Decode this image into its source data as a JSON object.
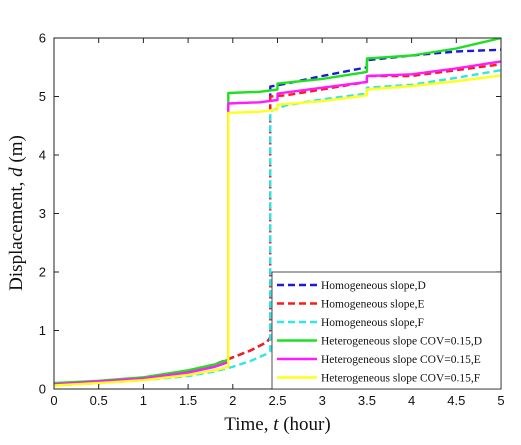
{
  "chart_data": {
    "type": "line",
    "xlabel": {
      "prefix": "Time, ",
      "var": "t",
      "suffix": " (hour)"
    },
    "ylabel": {
      "prefix": "Displacement, ",
      "var": "d",
      "suffix": " (m)"
    },
    "xlim": [
      0,
      5
    ],
    "ylim": [
      0,
      6
    ],
    "xticks": [
      0,
      0.5,
      1,
      1.5,
      2,
      2.5,
      3,
      3.5,
      4,
      4.5,
      5
    ],
    "xtick_labels": [
      "0",
      "0.5",
      "1",
      "1.5",
      "2",
      "2.5",
      "3",
      "3.5",
      "4",
      "4.5",
      "5"
    ],
    "yticks": [
      0,
      1,
      2,
      3,
      4,
      5,
      6
    ],
    "ytick_labels": [
      "0",
      "1",
      "2",
      "3",
      "4",
      "5",
      "6"
    ],
    "grid": false,
    "legend_position": "bottom-right",
    "series": [
      {
        "name": "Homogeneous slope,D",
        "color": "#1a1adc",
        "dash": "dashed",
        "x": [
          0,
          0.5,
          1,
          1.5,
          1.8,
          2.0,
          2.2,
          2.38,
          2.42,
          2.42,
          2.6,
          3.0,
          3.5,
          3.5,
          4.0,
          4.5,
          5.0
        ],
        "y": [
          0.08,
          0.13,
          0.19,
          0.3,
          0.42,
          0.54,
          0.66,
          0.8,
          0.88,
          5.17,
          5.22,
          5.35,
          5.5,
          5.62,
          5.7,
          5.77,
          5.8
        ]
      },
      {
        "name": "Homogeneous slope,E",
        "color": "#ff1a1a",
        "dash": "dashed",
        "x": [
          0,
          0.5,
          1,
          1.5,
          1.8,
          2.0,
          2.2,
          2.38,
          2.42,
          2.42,
          2.6,
          3.0,
          3.5,
          3.5,
          4.0,
          4.5,
          5.0
        ],
        "y": [
          0.08,
          0.13,
          0.19,
          0.3,
          0.42,
          0.54,
          0.66,
          0.8,
          0.88,
          5.0,
          5.02,
          5.12,
          5.25,
          5.35,
          5.35,
          5.45,
          5.55
        ]
      },
      {
        "name": "Homogeneous slope,F",
        "color": "#33e5e5",
        "dash": "dashed",
        "x": [
          0,
          0.5,
          1,
          1.5,
          1.8,
          2.0,
          2.2,
          2.38,
          2.42,
          2.42,
          2.6,
          3.0,
          3.5,
          3.5,
          4.0,
          4.5,
          5.0
        ],
        "y": [
          0.06,
          0.1,
          0.15,
          0.22,
          0.3,
          0.38,
          0.48,
          0.6,
          0.65,
          4.75,
          4.85,
          4.95,
          5.05,
          5.15,
          5.2,
          5.32,
          5.45
        ]
      },
      {
        "name": "Heterogeneous slope COV=0.15,D",
        "color": "#1ee01e",
        "dash": "solid",
        "x": [
          0,
          0.5,
          1,
          1.5,
          1.8,
          1.95,
          1.95,
          2.3,
          2.5,
          2.5,
          3.0,
          3.5,
          3.5,
          4.0,
          4.5,
          5.0
        ],
        "y": [
          0.1,
          0.14,
          0.2,
          0.32,
          0.42,
          0.5,
          5.06,
          5.08,
          5.12,
          5.22,
          5.3,
          5.42,
          5.65,
          5.7,
          5.82,
          6.0
        ]
      },
      {
        "name": "Heterogeneous slope COV=0.15,E",
        "color": "#ff1aff",
        "dash": "solid",
        "x": [
          0,
          0.5,
          1,
          1.5,
          1.8,
          1.95,
          1.95,
          2.3,
          2.5,
          2.5,
          3.0,
          3.5,
          3.5,
          4.0,
          4.5,
          5.0
        ],
        "y": [
          0.08,
          0.13,
          0.18,
          0.28,
          0.38,
          0.46,
          4.88,
          4.9,
          4.94,
          5.05,
          5.15,
          5.25,
          5.35,
          5.38,
          5.48,
          5.6
        ]
      },
      {
        "name": "Heterogeneous slope COV=0.15,F",
        "color": "#ffff1a",
        "dash": "solid",
        "x": [
          0,
          0.5,
          1,
          1.5,
          1.8,
          1.95,
          1.95,
          2.3,
          2.5,
          2.5,
          3.0,
          3.5,
          3.5,
          4.0,
          4.5,
          5.0
        ],
        "y": [
          0.06,
          0.1,
          0.15,
          0.24,
          0.32,
          0.38,
          4.72,
          4.74,
          4.78,
          4.86,
          4.92,
          5.02,
          5.12,
          5.18,
          5.26,
          5.36
        ]
      }
    ]
  }
}
